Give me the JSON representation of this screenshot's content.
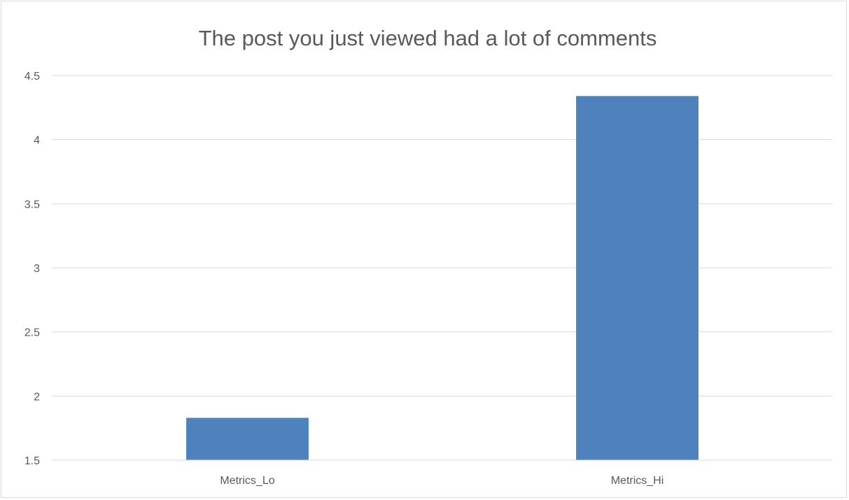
{
  "chart_data": {
    "type": "bar",
    "title": "The post you just viewed had a lot of comments",
    "categories": [
      "Metrics_Lo",
      "Metrics_Hi"
    ],
    "values": [
      1.83,
      4.34
    ],
    "ylim": [
      1.5,
      4.5
    ],
    "yticks": [
      "1.5",
      "2",
      "2.5",
      "3",
      "3.5",
      "4",
      "4.5"
    ],
    "ytick_values": [
      1.5,
      2,
      2.5,
      3,
      3.5,
      4,
      4.5
    ],
    "grid": true,
    "legend": "none",
    "bar_color": "#4f81bd"
  }
}
